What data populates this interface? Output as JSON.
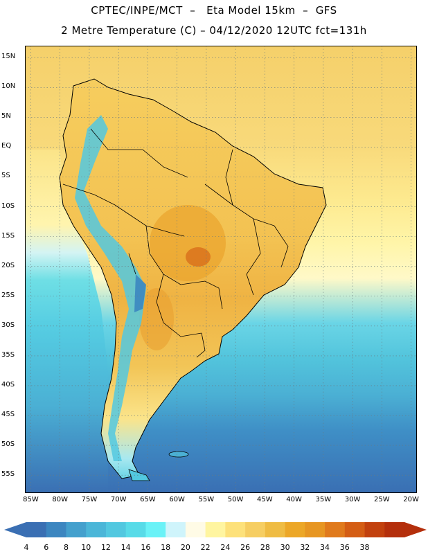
{
  "header": {
    "line1": "CPTEC/INPE/MCT  –   Eta Model 15km  –  GFS",
    "line2": "2 Metre Temperature (C) – 04/12/2020 12UTC fct=131h"
  },
  "map": {
    "lon_range": [
      -86,
      -19
    ],
    "lat_range": [
      -58,
      17
    ],
    "grid": true,
    "lat_ticks": [
      {
        "value": 15,
        "label": "15N"
      },
      {
        "value": 10,
        "label": "10N"
      },
      {
        "value": 5,
        "label": "5N"
      },
      {
        "value": 0,
        "label": "EQ"
      },
      {
        "value": -5,
        "label": "5S"
      },
      {
        "value": -10,
        "label": "10S"
      },
      {
        "value": -15,
        "label": "15S"
      },
      {
        "value": -20,
        "label": "20S"
      },
      {
        "value": -25,
        "label": "25S"
      },
      {
        "value": -30,
        "label": "30S"
      },
      {
        "value": -35,
        "label": "35S"
      },
      {
        "value": -40,
        "label": "40S"
      },
      {
        "value": -45,
        "label": "45S"
      },
      {
        "value": -50,
        "label": "50S"
      },
      {
        "value": -55,
        "label": "55S"
      }
    ],
    "lon_ticks": [
      {
        "value": -85,
        "label": "85W"
      },
      {
        "value": -80,
        "label": "80W"
      },
      {
        "value": -75,
        "label": "75W"
      },
      {
        "value": -70,
        "label": "70W"
      },
      {
        "value": -65,
        "label": "65W"
      },
      {
        "value": -60,
        "label": "60W"
      },
      {
        "value": -55,
        "label": "55W"
      },
      {
        "value": -50,
        "label": "50W"
      },
      {
        "value": -45,
        "label": "45W"
      },
      {
        "value": -40,
        "label": "40W"
      },
      {
        "value": -35,
        "label": "35W"
      },
      {
        "value": -30,
        "label": "30W"
      },
      {
        "value": -25,
        "label": "25W"
      },
      {
        "value": -20,
        "label": "20W"
      }
    ]
  },
  "colorbar": {
    "labels": [
      "4",
      "6",
      "8",
      "10",
      "12",
      "14",
      "16",
      "18",
      "20",
      "22",
      "24",
      "26",
      "28",
      "30",
      "32",
      "34",
      "36",
      "38"
    ],
    "colors": [
      "#3a6fb3",
      "#3c86c0",
      "#44a0cd",
      "#4bb6d8",
      "#52c8e0",
      "#58dbe8",
      "#6af2f7",
      "#cff4fb",
      "#fffbe6",
      "#fff5a0",
      "#fde17a",
      "#f6ce62",
      "#efbc43",
      "#eca727",
      "#e79622",
      "#e07a1c",
      "#d45d14",
      "#c2410e",
      "#b42f0c"
    ],
    "low_color": "#3a6fb3",
    "high_color": "#b42f0c"
  }
}
